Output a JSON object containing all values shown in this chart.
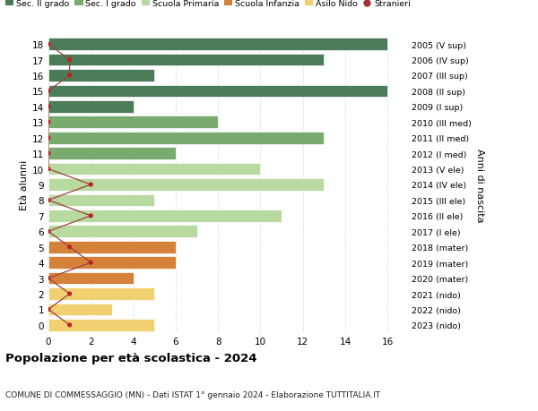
{
  "ages": [
    18,
    17,
    16,
    15,
    14,
    13,
    12,
    11,
    10,
    9,
    8,
    7,
    6,
    5,
    4,
    3,
    2,
    1,
    0
  ],
  "years": [
    "2005 (V sup)",
    "2006 (IV sup)",
    "2007 (III sup)",
    "2008 (II sup)",
    "2009 (I sup)",
    "2010 (III med)",
    "2011 (II med)",
    "2012 (I med)",
    "2013 (V ele)",
    "2014 (IV ele)",
    "2015 (III ele)",
    "2016 (II ele)",
    "2017 (I ele)",
    "2018 (mater)",
    "2019 (mater)",
    "2020 (mater)",
    "2021 (nido)",
    "2022 (nido)",
    "2023 (nido)"
  ],
  "bar_values": [
    16,
    13,
    5,
    16,
    4,
    8,
    13,
    6,
    10,
    13,
    5,
    11,
    7,
    6,
    6,
    4,
    5,
    3,
    5
  ],
  "bar_colors": [
    "#4a7c59",
    "#4a7c59",
    "#4a7c59",
    "#4a7c59",
    "#4a7c59",
    "#7aab6e",
    "#7aab6e",
    "#7aab6e",
    "#b8d9a0",
    "#b8d9a0",
    "#b8d9a0",
    "#b8d9a0",
    "#b8d9a0",
    "#d4813a",
    "#d4813a",
    "#d4813a",
    "#f0d070",
    "#f0d070",
    "#f0d070"
  ],
  "stranieri_x": [
    0,
    1,
    1,
    0,
    0,
    0,
    0,
    0,
    0,
    2,
    0,
    2,
    0,
    1,
    2,
    0,
    1,
    0,
    1
  ],
  "legend_labels": [
    "Sec. II grado",
    "Sec. I grado",
    "Scuola Primaria",
    "Scuola Infanzia",
    "Asilo Nido",
    "Stranieri"
  ],
  "legend_colors": [
    "#4a7c59",
    "#7aab6e",
    "#b8d9a0",
    "#d4813a",
    "#f0d070",
    "#a83030"
  ],
  "title": "Popolazione per età scolastica - 2024",
  "subtitle": "COMUNE DI COMMESSAGGIO (MN) - Dati ISTAT 1° gennaio 2024 - Elaborazione TUTTITALIA.IT",
  "ylabel_left": "Età alunni",
  "ylabel_right": "Anni di nascita",
  "xticks": [
    0,
    2,
    4,
    6,
    8,
    10,
    12,
    14,
    16
  ],
  "xlim": [
    0,
    17
  ],
  "background_color": "#ffffff",
  "grid_color": "#cccccc",
  "stranieri_line_color": "#a04040",
  "stranieri_dot_color": "#bb2222"
}
